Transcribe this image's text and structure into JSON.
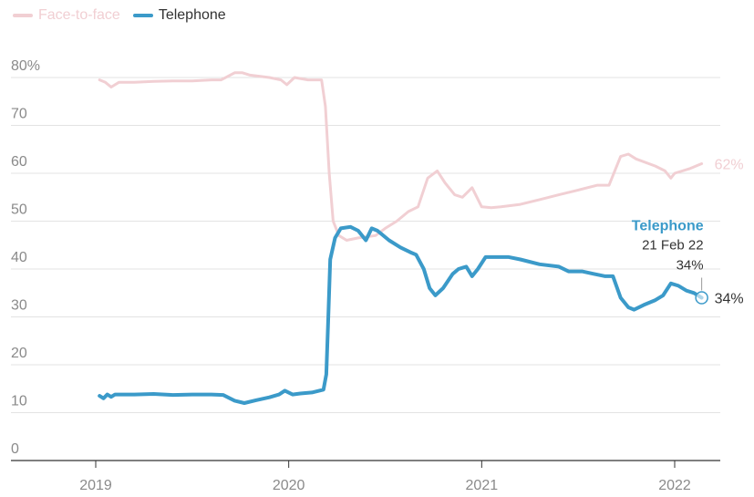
{
  "chart_data": {
    "type": "line",
    "title": "",
    "xlabel": "",
    "ylabel": "",
    "ylim": [
      0,
      80
    ],
    "y_ticks": [
      0,
      10,
      20,
      30,
      40,
      50,
      60,
      70,
      80
    ],
    "y_tick_labels": [
      "0",
      "10",
      "20",
      "30",
      "40",
      "50",
      "60",
      "70",
      "80%"
    ],
    "x_ticks": [
      2019,
      2020,
      2021,
      2022
    ],
    "x_tick_labels": [
      "2019",
      "2020",
      "2021",
      "2022"
    ],
    "xlim": [
      2018.55,
      2022.2
    ],
    "grid": true,
    "legend_placement": "top-left",
    "series": [
      {
        "name": "Face-to-face",
        "color": "#f1cfd3",
        "end_label": "62%",
        "points": [
          [
            2019.02,
            79.5
          ],
          [
            2019.05,
            79.0
          ],
          [
            2019.08,
            78.0
          ],
          [
            2019.12,
            79.0
          ],
          [
            2019.2,
            79.0
          ],
          [
            2019.3,
            79.2
          ],
          [
            2019.4,
            79.3
          ],
          [
            2019.5,
            79.3
          ],
          [
            2019.6,
            79.5
          ],
          [
            2019.65,
            79.5
          ],
          [
            2019.72,
            81.0
          ],
          [
            2019.76,
            81.0
          ],
          [
            2019.8,
            80.5
          ],
          [
            2019.9,
            80.0
          ],
          [
            2019.96,
            79.5
          ],
          [
            2019.99,
            78.5
          ],
          [
            2020.03,
            80.0
          ],
          [
            2020.1,
            79.5
          ],
          [
            2020.17,
            79.5
          ],
          [
            2020.19,
            74.0
          ],
          [
            2020.21,
            60.0
          ],
          [
            2020.23,
            50.0
          ],
          [
            2020.26,
            47.0
          ],
          [
            2020.3,
            46.0
          ],
          [
            2020.36,
            46.5
          ],
          [
            2020.45,
            47.0
          ],
          [
            2020.5,
            48.5
          ],
          [
            2020.56,
            50.0
          ],
          [
            2020.62,
            52.0
          ],
          [
            2020.67,
            53.0
          ],
          [
            2020.72,
            59.0
          ],
          [
            2020.77,
            60.5
          ],
          [
            2020.81,
            58.0
          ],
          [
            2020.86,
            55.5
          ],
          [
            2020.9,
            55.0
          ],
          [
            2020.95,
            57.0
          ],
          [
            2021.0,
            53.0
          ],
          [
            2021.05,
            52.8
          ],
          [
            2021.1,
            53.0
          ],
          [
            2021.2,
            53.5
          ],
          [
            2021.3,
            54.5
          ],
          [
            2021.4,
            55.5
          ],
          [
            2021.5,
            56.5
          ],
          [
            2021.6,
            57.5
          ],
          [
            2021.66,
            57.5
          ],
          [
            2021.72,
            63.5
          ],
          [
            2021.76,
            64.0
          ],
          [
            2021.8,
            63.0
          ],
          [
            2021.9,
            61.5
          ],
          [
            2021.95,
            60.5
          ],
          [
            2021.98,
            59.0
          ],
          [
            2022.0,
            60.0
          ],
          [
            2022.08,
            61.0
          ],
          [
            2022.14,
            62.0
          ]
        ]
      },
      {
        "name": "Telephone",
        "color": "#3b9ac9",
        "end_label": "34%",
        "points": [
          [
            2019.02,
            13.5
          ],
          [
            2019.04,
            13.0
          ],
          [
            2019.06,
            13.8
          ],
          [
            2019.08,
            13.3
          ],
          [
            2019.1,
            13.8
          ],
          [
            2019.2,
            13.8
          ],
          [
            2019.3,
            13.9
          ],
          [
            2019.4,
            13.7
          ],
          [
            2019.5,
            13.8
          ],
          [
            2019.6,
            13.8
          ],
          [
            2019.66,
            13.7
          ],
          [
            2019.72,
            12.5
          ],
          [
            2019.77,
            12.0
          ],
          [
            2019.83,
            12.6
          ],
          [
            2019.9,
            13.2
          ],
          [
            2019.95,
            13.8
          ],
          [
            2019.98,
            14.6
          ],
          [
            2020.02,
            13.8
          ],
          [
            2020.06,
            14.0
          ],
          [
            2020.12,
            14.2
          ],
          [
            2020.18,
            14.8
          ],
          [
            2020.195,
            18.0
          ],
          [
            2020.205,
            30.0
          ],
          [
            2020.215,
            42.0
          ],
          [
            2020.24,
            46.5
          ],
          [
            2020.27,
            48.5
          ],
          [
            2020.32,
            48.8
          ],
          [
            2020.36,
            48.0
          ],
          [
            2020.4,
            46.0
          ],
          [
            2020.43,
            48.5
          ],
          [
            2020.46,
            48.0
          ],
          [
            2020.52,
            46.0
          ],
          [
            2020.58,
            44.5
          ],
          [
            2020.63,
            43.5
          ],
          [
            2020.66,
            43.0
          ],
          [
            2020.7,
            40.0
          ],
          [
            2020.73,
            36.0
          ],
          [
            2020.76,
            34.5
          ],
          [
            2020.8,
            36.0
          ],
          [
            2020.85,
            39.0
          ],
          [
            2020.88,
            40.0
          ],
          [
            2020.92,
            40.5
          ],
          [
            2020.95,
            38.5
          ],
          [
            2020.98,
            40.0
          ],
          [
            2021.02,
            42.5
          ],
          [
            2021.08,
            42.5
          ],
          [
            2021.14,
            42.5
          ],
          [
            2021.2,
            42.0
          ],
          [
            2021.3,
            41.0
          ],
          [
            2021.4,
            40.5
          ],
          [
            2021.45,
            39.5
          ],
          [
            2021.52,
            39.5
          ],
          [
            2021.58,
            39.0
          ],
          [
            2021.64,
            38.5
          ],
          [
            2021.68,
            38.5
          ],
          [
            2021.72,
            34.0
          ],
          [
            2021.76,
            32.0
          ],
          [
            2021.79,
            31.5
          ],
          [
            2021.84,
            32.5
          ],
          [
            2021.9,
            33.5
          ],
          [
            2021.94,
            34.5
          ],
          [
            2021.98,
            37.0
          ],
          [
            2022.02,
            36.5
          ],
          [
            2022.06,
            35.5
          ],
          [
            2022.1,
            35.0
          ],
          [
            2022.14,
            34.0
          ]
        ]
      }
    ],
    "annotation": {
      "series": "Telephone",
      "title": "Telephone",
      "date": "21 Feb 22",
      "value": "34%",
      "x": 2022.14,
      "y": 34
    }
  }
}
